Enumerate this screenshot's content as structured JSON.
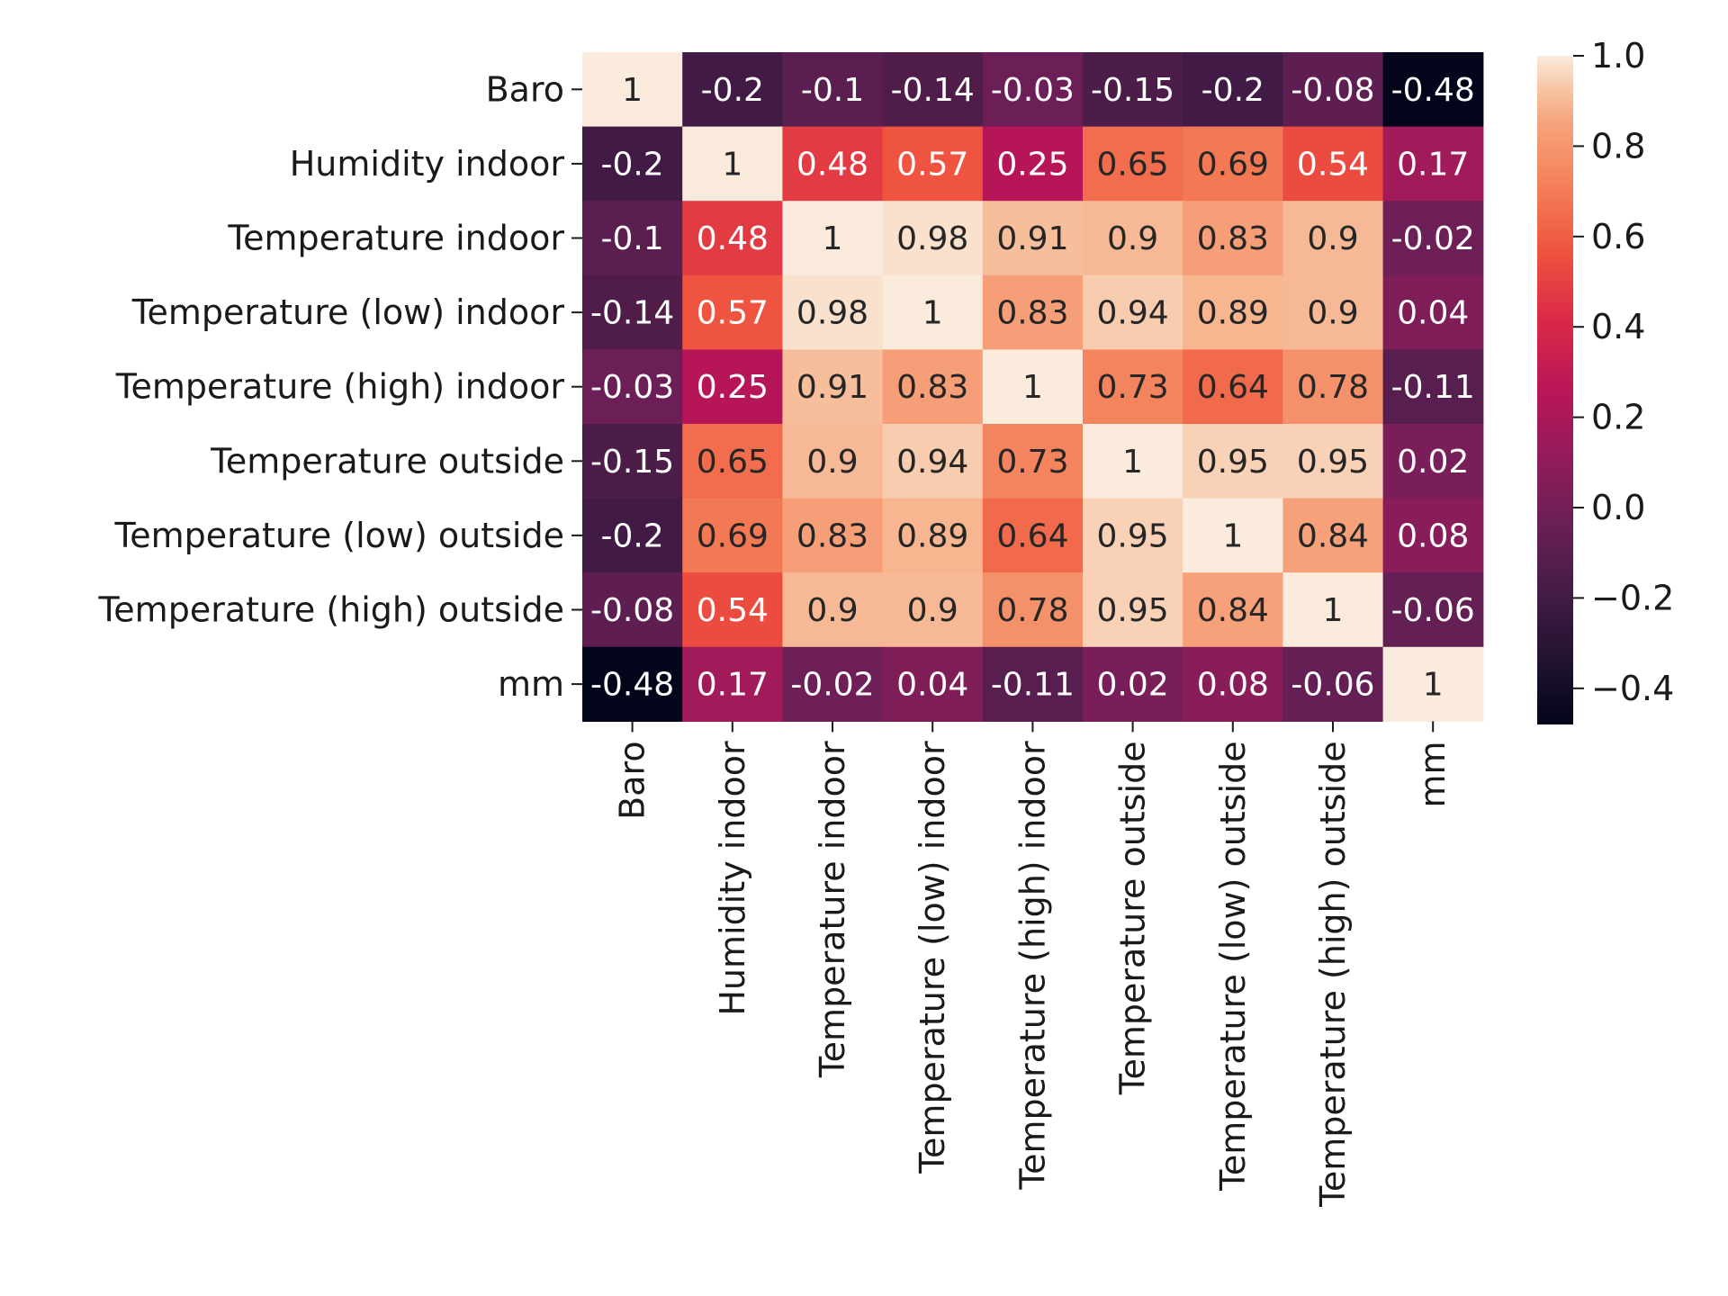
{
  "chart_data": {
    "type": "heatmap",
    "row_labels": [
      "Baro",
      "Humidity indoor",
      "Temperature indoor",
      "Temperature (low) indoor",
      "Temperature (high) indoor",
      "Temperature outside",
      "Temperature (low) outside",
      "Temperature (high) outside",
      "mm"
    ],
    "col_labels": [
      "Baro",
      "Humidity indoor",
      "Temperature indoor",
      "Temperature (low) indoor",
      "Temperature (high) indoor",
      "Temperature outside",
      "Temperature (low) outside",
      "Temperature (high) outside",
      "mm"
    ],
    "values": [
      [
        1,
        -0.2,
        -0.1,
        -0.14,
        -0.03,
        -0.15,
        -0.2,
        -0.08,
        -0.48
      ],
      [
        -0.2,
        1,
        0.48,
        0.57,
        0.25,
        0.65,
        0.69,
        0.54,
        0.17
      ],
      [
        -0.1,
        0.48,
        1,
        0.98,
        0.91,
        0.9,
        0.83,
        0.9,
        -0.02
      ],
      [
        -0.14,
        0.57,
        0.98,
        1,
        0.83,
        0.94,
        0.89,
        0.9,
        0.04
      ],
      [
        -0.03,
        0.25,
        0.91,
        0.83,
        1,
        0.73,
        0.64,
        0.78,
        -0.11
      ],
      [
        -0.15,
        0.65,
        0.9,
        0.94,
        0.73,
        1,
        0.95,
        0.95,
        0.02
      ],
      [
        -0.2,
        0.69,
        0.83,
        0.89,
        0.64,
        0.95,
        1,
        0.84,
        0.08
      ],
      [
        -0.08,
        0.54,
        0.9,
        0.9,
        0.78,
        0.95,
        0.84,
        1,
        -0.06
      ],
      [
        -0.48,
        0.17,
        -0.02,
        0.04,
        -0.11,
        0.02,
        0.08,
        -0.06,
        1
      ]
    ],
    "annotations": [
      [
        "1",
        "-0.2",
        "-0.1",
        "-0.14",
        "-0.03",
        "-0.15",
        "-0.2",
        "-0.08",
        "-0.48"
      ],
      [
        "-0.2",
        "1",
        "0.48",
        "0.57",
        "0.25",
        "0.65",
        "0.69",
        "0.54",
        "0.17"
      ],
      [
        "-0.1",
        "0.48",
        "1",
        "0.98",
        "0.91",
        "0.9",
        "0.83",
        "0.9",
        "-0.02"
      ],
      [
        "-0.14",
        "0.57",
        "0.98",
        "1",
        "0.83",
        "0.94",
        "0.89",
        "0.9",
        "0.04"
      ],
      [
        "-0.03",
        "0.25",
        "0.91",
        "0.83",
        "1",
        "0.73",
        "0.64",
        "0.78",
        "-0.11"
      ],
      [
        "-0.15",
        "0.65",
        "0.9",
        "0.94",
        "0.73",
        "1",
        "0.95",
        "0.95",
        "0.02"
      ],
      [
        "-0.2",
        "0.69",
        "0.83",
        "0.89",
        "0.64",
        "0.95",
        "1",
        "0.84",
        "0.08"
      ],
      [
        "-0.08",
        "0.54",
        "0.9",
        "0.9",
        "0.78",
        "0.95",
        "0.84",
        "1",
        "-0.06"
      ],
      [
        "-0.48",
        "0.17",
        "-0.02",
        "0.04",
        "-0.11",
        "0.02",
        "0.08",
        "-0.06",
        "1"
      ]
    ],
    "colormap": "rocket",
    "vmin": -0.48,
    "vmax": 1.0,
    "colorbar": {
      "ticks": [
        1.0,
        0.8,
        0.6,
        0.4,
        0.2,
        0.0,
        -0.2,
        -0.4
      ],
      "tick_labels": [
        "1.0",
        "0.8",
        "0.6",
        "0.4",
        "0.2",
        "0.0",
        "−0.2",
        "−0.4"
      ],
      "placement": "right"
    },
    "colormap_stops": [
      {
        "v": 0.0,
        "c": "#03051a"
      },
      {
        "v": 0.1,
        "c": "#221331"
      },
      {
        "v": 0.2,
        "c": "#451c47"
      },
      {
        "v": 0.3,
        "c": "#6a1f56"
      },
      {
        "v": 0.4,
        "c": "#921c5b"
      },
      {
        "v": 0.5,
        "c": "#b91657"
      },
      {
        "v": 0.6,
        "c": "#d92847"
      },
      {
        "v": 0.7,
        "c": "#ed503e"
      },
      {
        "v": 0.8,
        "c": "#f47d57"
      },
      {
        "v": 0.9,
        "c": "#f6a47c"
      },
      {
        "v": 0.95,
        "c": "#f7c5a3"
      },
      {
        "v": 1.0,
        "c": "#faebdd"
      }
    ],
    "title": "",
    "xlabel": "",
    "ylabel": "",
    "grid": false
  }
}
